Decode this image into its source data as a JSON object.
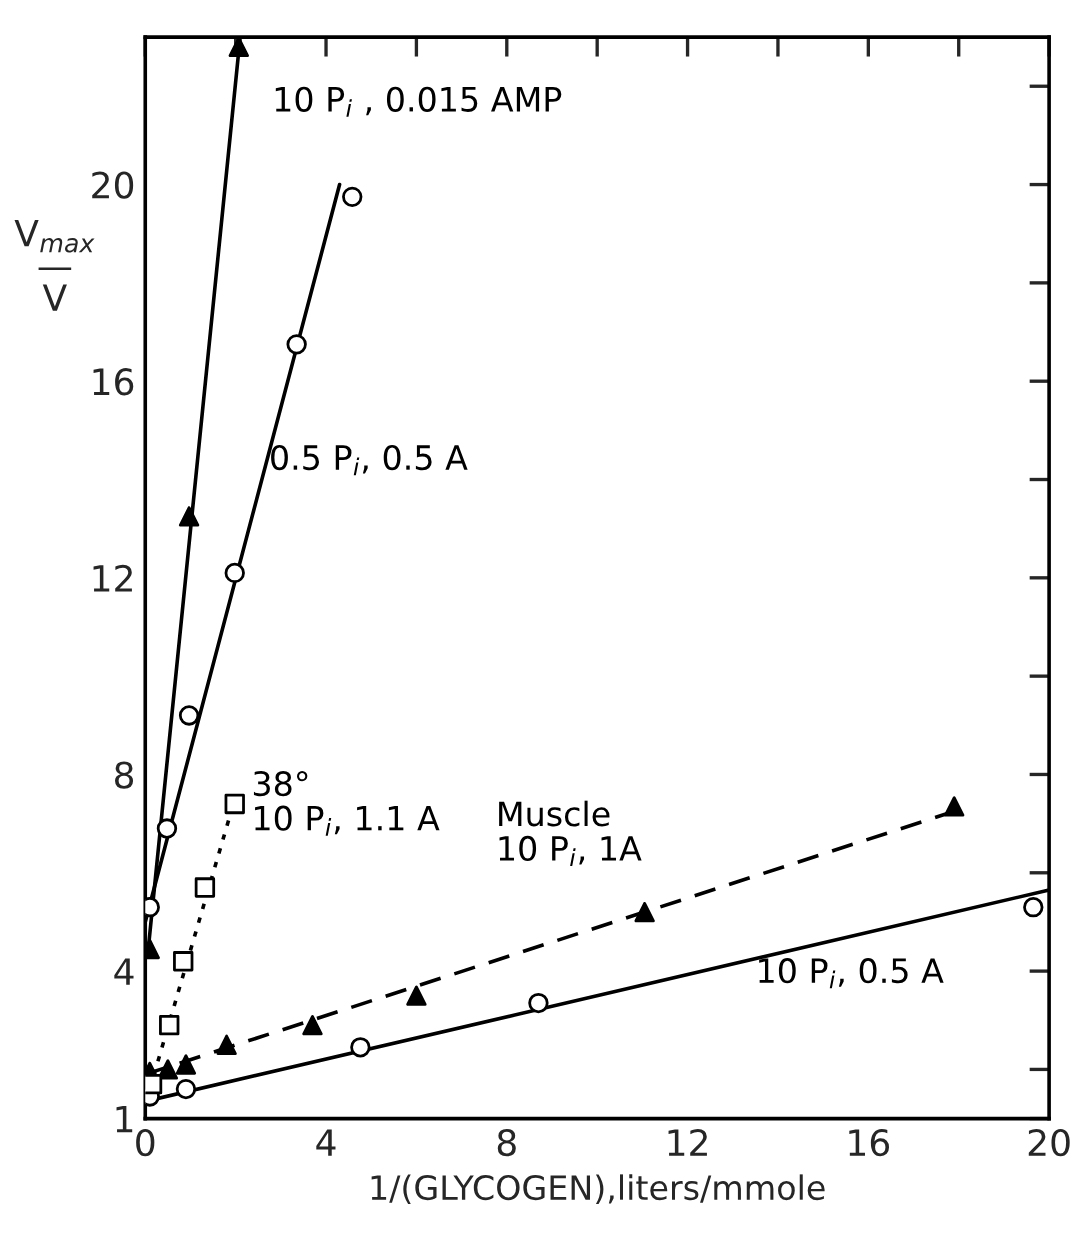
{
  "chart_data": {
    "type": "scatter",
    "xlabel": "1/(GLYCOGEN),liters/mmole",
    "ylabel": "V$_{max}$\n—\nV",
    "xlim": [
      0,
      20
    ],
    "ylim": [
      1,
      23
    ],
    "xticks": [
      0,
      {
        "value": 2,
        "label": null
      },
      4,
      {
        "value": 6,
        "label": null
      },
      8,
      {
        "value": 10,
        "label": null
      },
      12,
      {
        "value": 14,
        "label": null
      },
      16,
      {
        "value": 18,
        "label": null
      },
      20
    ],
    "yticks": [
      {
        "value": 1,
        "label": "1"
      },
      {
        "value": 2,
        "label": null
      },
      4,
      {
        "value": 6,
        "label": null
      },
      8,
      {
        "value": 10,
        "label": null
      },
      12,
      {
        "value": 14,
        "label": null
      },
      16,
      {
        "value": 18,
        "label": null
      },
      20,
      {
        "value": 22,
        "label": null
      }
    ],
    "grid": false,
    "legend": false,
    "series": [
      {
        "name": "10 P$_{i}$ , 0.015 AMP",
        "marker": "triangle",
        "color": "#000000",
        "x": [
          0.1,
          0.97,
          2.07
        ],
        "values": [
          4.45,
          13.25,
          22.8
        ]
      },
      {
        "type": "line",
        "line_style": "solid",
        "marker": "none",
        "color": "#000000",
        "x": [
          0.05,
          2.1
        ],
        "values": [
          4.3,
          23.0
        ]
      },
      {
        "name": "0.5 P$_{i}$, 0.5 A",
        "marker": "circle",
        "color": "#000000",
        "x": [
          0.1,
          0.48,
          0.97,
          1.98,
          3.35,
          4.58
        ],
        "values": [
          5.3,
          6.9,
          9.2,
          12.1,
          16.75,
          19.75
        ]
      },
      {
        "type": "line",
        "line_style": "solid",
        "marker": "none",
        "color": "#000000",
        "x": [
          0.0,
          4.3
        ],
        "values": [
          5.0,
          20.0
        ]
      },
      {
        "name": "38°\n10 P$_{i}$, 1.1 A",
        "marker": "square",
        "color": "#000000",
        "x": [
          0.15,
          0.53,
          0.84,
          1.32,
          1.98
        ],
        "values": [
          1.7,
          2.9,
          4.2,
          5.7,
          7.4
        ]
      },
      {
        "type": "line",
        "line_style": "dotted",
        "marker": "none",
        "color": "#000000",
        "x": [
          0.1,
          1.95
        ],
        "values": [
          1.6,
          7.4
        ]
      },
      {
        "name": "Muscle\n10 P$_{i}$, 1A",
        "marker": "triangle",
        "color": "#000000",
        "x": [
          0.1,
          0.5,
          0.9,
          1.8,
          3.7,
          6.0,
          11.05,
          17.9
        ],
        "values": [
          1.95,
          2.0,
          2.1,
          2.5,
          2.9,
          3.5,
          5.2,
          7.35
        ]
      },
      {
        "type": "line",
        "line_style": "dashed",
        "marker": "none",
        "color": "#000000",
        "x": [
          0.0,
          17.9
        ],
        "values": [
          1.9,
          7.25
        ]
      },
      {
        "name": "10 P$_{i}$, 0.5 A",
        "marker": "circle",
        "color": "#000000",
        "x": [
          0.1,
          0.9,
          4.76,
          8.7,
          19.65
        ],
        "values": [
          1.45,
          1.6,
          2.45,
          3.35,
          5.3
        ]
      },
      {
        "type": "line",
        "line_style": "solid",
        "marker": "none",
        "color": "#000000",
        "x": [
          0.0,
          20.0
        ],
        "values": [
          1.35,
          5.65
        ]
      }
    ]
  }
}
